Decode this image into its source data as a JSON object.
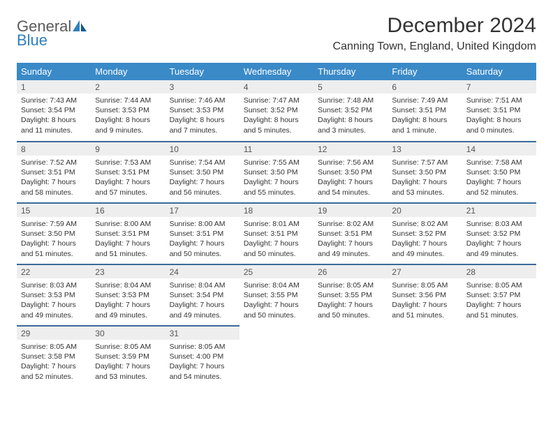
{
  "logo": {
    "general": "General",
    "blue": "Blue"
  },
  "title": "December 2024",
  "location": "Canning Town, England, United Kingdom",
  "style": {
    "header_bg": "#3a8ac8",
    "header_fg": "#ffffff",
    "row_border": "#3a6a9a",
    "daynum_bg": "#eeeeee",
    "daynum_fg": "#555555",
    "body_fg": "#333333",
    "page_bg": "#ffffff",
    "logo_gray": "#5a5a5a",
    "logo_blue": "#2f7fbf",
    "title_fontsize": 30,
    "location_fontsize": 16,
    "cell_fontsize": 10.5
  },
  "weekdays": [
    "Sunday",
    "Monday",
    "Tuesday",
    "Wednesday",
    "Thursday",
    "Friday",
    "Saturday"
  ],
  "days": [
    {
      "n": 1,
      "sr": "7:43 AM",
      "ss": "3:54 PM",
      "dl": "8 hours and 11 minutes."
    },
    {
      "n": 2,
      "sr": "7:44 AM",
      "ss": "3:53 PM",
      "dl": "8 hours and 9 minutes."
    },
    {
      "n": 3,
      "sr": "7:46 AM",
      "ss": "3:53 PM",
      "dl": "8 hours and 7 minutes."
    },
    {
      "n": 4,
      "sr": "7:47 AM",
      "ss": "3:52 PM",
      "dl": "8 hours and 5 minutes."
    },
    {
      "n": 5,
      "sr": "7:48 AM",
      "ss": "3:52 PM",
      "dl": "8 hours and 3 minutes."
    },
    {
      "n": 6,
      "sr": "7:49 AM",
      "ss": "3:51 PM",
      "dl": "8 hours and 1 minute."
    },
    {
      "n": 7,
      "sr": "7:51 AM",
      "ss": "3:51 PM",
      "dl": "8 hours and 0 minutes."
    },
    {
      "n": 8,
      "sr": "7:52 AM",
      "ss": "3:51 PM",
      "dl": "7 hours and 58 minutes."
    },
    {
      "n": 9,
      "sr": "7:53 AM",
      "ss": "3:51 PM",
      "dl": "7 hours and 57 minutes."
    },
    {
      "n": 10,
      "sr": "7:54 AM",
      "ss": "3:50 PM",
      "dl": "7 hours and 56 minutes."
    },
    {
      "n": 11,
      "sr": "7:55 AM",
      "ss": "3:50 PM",
      "dl": "7 hours and 55 minutes."
    },
    {
      "n": 12,
      "sr": "7:56 AM",
      "ss": "3:50 PM",
      "dl": "7 hours and 54 minutes."
    },
    {
      "n": 13,
      "sr": "7:57 AM",
      "ss": "3:50 PM",
      "dl": "7 hours and 53 minutes."
    },
    {
      "n": 14,
      "sr": "7:58 AM",
      "ss": "3:50 PM",
      "dl": "7 hours and 52 minutes."
    },
    {
      "n": 15,
      "sr": "7:59 AM",
      "ss": "3:50 PM",
      "dl": "7 hours and 51 minutes."
    },
    {
      "n": 16,
      "sr": "8:00 AM",
      "ss": "3:51 PM",
      "dl": "7 hours and 51 minutes."
    },
    {
      "n": 17,
      "sr": "8:00 AM",
      "ss": "3:51 PM",
      "dl": "7 hours and 50 minutes."
    },
    {
      "n": 18,
      "sr": "8:01 AM",
      "ss": "3:51 PM",
      "dl": "7 hours and 50 minutes."
    },
    {
      "n": 19,
      "sr": "8:02 AM",
      "ss": "3:51 PM",
      "dl": "7 hours and 49 minutes."
    },
    {
      "n": 20,
      "sr": "8:02 AM",
      "ss": "3:52 PM",
      "dl": "7 hours and 49 minutes."
    },
    {
      "n": 21,
      "sr": "8:03 AM",
      "ss": "3:52 PM",
      "dl": "7 hours and 49 minutes."
    },
    {
      "n": 22,
      "sr": "8:03 AM",
      "ss": "3:53 PM",
      "dl": "7 hours and 49 minutes."
    },
    {
      "n": 23,
      "sr": "8:04 AM",
      "ss": "3:53 PM",
      "dl": "7 hours and 49 minutes."
    },
    {
      "n": 24,
      "sr": "8:04 AM",
      "ss": "3:54 PM",
      "dl": "7 hours and 49 minutes."
    },
    {
      "n": 25,
      "sr": "8:04 AM",
      "ss": "3:55 PM",
      "dl": "7 hours and 50 minutes."
    },
    {
      "n": 26,
      "sr": "8:05 AM",
      "ss": "3:55 PM",
      "dl": "7 hours and 50 minutes."
    },
    {
      "n": 27,
      "sr": "8:05 AM",
      "ss": "3:56 PM",
      "dl": "7 hours and 51 minutes."
    },
    {
      "n": 28,
      "sr": "8:05 AM",
      "ss": "3:57 PM",
      "dl": "7 hours and 51 minutes."
    },
    {
      "n": 29,
      "sr": "8:05 AM",
      "ss": "3:58 PM",
      "dl": "7 hours and 52 minutes."
    },
    {
      "n": 30,
      "sr": "8:05 AM",
      "ss": "3:59 PM",
      "dl": "7 hours and 53 minutes."
    },
    {
      "n": 31,
      "sr": "8:05 AM",
      "ss": "4:00 PM",
      "dl": "7 hours and 54 minutes."
    }
  ],
  "labels": {
    "sunrise": "Sunrise:",
    "sunset": "Sunset:",
    "daylight": "Daylight:"
  },
  "layout": {
    "first_weekday_index": 0,
    "rows": 5,
    "cols": 7
  }
}
